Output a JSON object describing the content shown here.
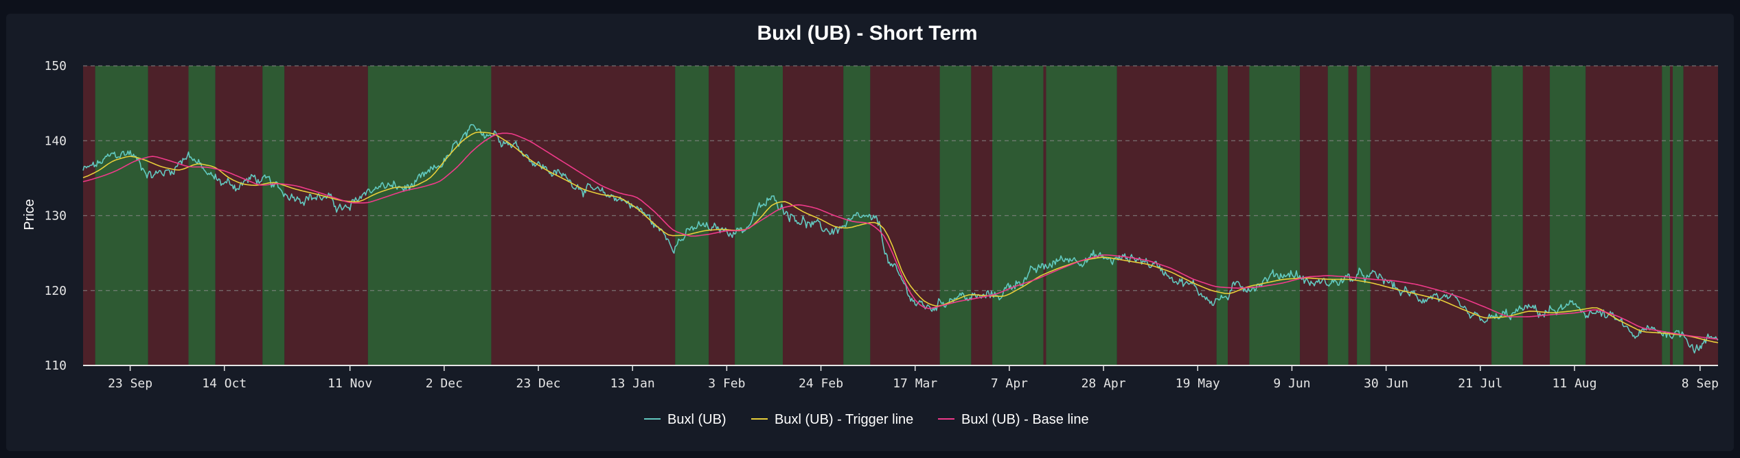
{
  "colors": {
    "background": "#0d111b",
    "panel": "#161b26",
    "bullish_band": "#2e5a33",
    "bearish_band": "#4d2129",
    "price_line": "#62c9c0",
    "trigger_line": "#e8cf3a",
    "base_line": "#f03a8a",
    "grid": "#8a8a8a",
    "axis": "#e6e6e6"
  },
  "chart_data": {
    "type": "line",
    "title": "Buxl (UB) - Short Term",
    "xlabel": "",
    "ylabel": "Price",
    "ylim": [
      110,
      150
    ],
    "yticks": [
      110,
      120,
      130,
      140,
      150
    ],
    "grid": "horizontal dashed",
    "legend_position": "bottom-center",
    "x_range_days": [
      -7.5,
      357
    ],
    "x_ticks": [
      {
        "day": 3,
        "label": "23 Sep"
      },
      {
        "day": 24,
        "label": "14 Oct"
      },
      {
        "day": 52,
        "label": "11 Nov"
      },
      {
        "day": 73,
        "label": "2 Dec"
      },
      {
        "day": 94,
        "label": "23 Dec"
      },
      {
        "day": 115,
        "label": "13 Jan"
      },
      {
        "day": 136,
        "label": "3 Feb"
      },
      {
        "day": 157,
        "label": "24 Feb"
      },
      {
        "day": 178,
        "label": "17 Mar"
      },
      {
        "day": 199,
        "label": "7 Apr"
      },
      {
        "day": 220,
        "label": "28 Apr"
      },
      {
        "day": 241,
        "label": "19 May"
      },
      {
        "day": 262,
        "label": "9 Jun"
      },
      {
        "day": 283,
        "label": "30 Jun"
      },
      {
        "day": 304,
        "label": "21 Jul"
      },
      {
        "day": 325,
        "label": "11 Aug"
      },
      {
        "day": 353,
        "label": "8 Sep"
      }
    ],
    "regime_bands": [
      {
        "start": -7.5,
        "end": -4.8,
        "state": "bearish"
      },
      {
        "start": -4.8,
        "end": 7,
        "state": "bullish"
      },
      {
        "start": 7,
        "end": 16,
        "state": "bearish"
      },
      {
        "start": 16,
        "end": 22,
        "state": "bullish"
      },
      {
        "start": 22,
        "end": 32.5,
        "state": "bearish"
      },
      {
        "start": 32.5,
        "end": 37.4,
        "state": "bullish"
      },
      {
        "start": 37.4,
        "end": 56,
        "state": "bearish"
      },
      {
        "start": 56,
        "end": 83.5,
        "state": "bullish"
      },
      {
        "start": 83.5,
        "end": 124.5,
        "state": "bearish"
      },
      {
        "start": 124.5,
        "end": 132,
        "state": "bullish"
      },
      {
        "start": 132,
        "end": 137.8,
        "state": "bearish"
      },
      {
        "start": 137.8,
        "end": 148.5,
        "state": "bullish"
      },
      {
        "start": 148.5,
        "end": 162,
        "state": "bearish"
      },
      {
        "start": 162,
        "end": 168,
        "state": "bullish"
      },
      {
        "start": 168,
        "end": 183.5,
        "state": "bearish"
      },
      {
        "start": 183.5,
        "end": 190.5,
        "state": "bullish"
      },
      {
        "start": 190.5,
        "end": 195.2,
        "state": "bearish"
      },
      {
        "start": 195.2,
        "end": 206.6,
        "state": "bullish"
      },
      {
        "start": 206.6,
        "end": 207.2,
        "state": "bearish"
      },
      {
        "start": 207.2,
        "end": 223,
        "state": "bullish"
      },
      {
        "start": 223,
        "end": 245.2,
        "state": "bearish"
      },
      {
        "start": 245.2,
        "end": 247.7,
        "state": "bullish"
      },
      {
        "start": 247.7,
        "end": 252.5,
        "state": "bearish"
      },
      {
        "start": 252.5,
        "end": 263.8,
        "state": "bullish"
      },
      {
        "start": 263.8,
        "end": 270,
        "state": "bearish"
      },
      {
        "start": 270,
        "end": 274.6,
        "state": "bullish"
      },
      {
        "start": 274.6,
        "end": 276.5,
        "state": "bearish"
      },
      {
        "start": 276.5,
        "end": 279.5,
        "state": "bullish"
      },
      {
        "start": 279.5,
        "end": 306.5,
        "state": "bearish"
      },
      {
        "start": 306.5,
        "end": 313.5,
        "state": "bullish"
      },
      {
        "start": 313.5,
        "end": 319.5,
        "state": "bearish"
      },
      {
        "start": 319.5,
        "end": 327.5,
        "state": "bullish"
      },
      {
        "start": 327.5,
        "end": 344.5,
        "state": "bearish"
      },
      {
        "start": 344.5,
        "end": 346.3,
        "state": "bullish"
      },
      {
        "start": 346.3,
        "end": 346.9,
        "state": "bearish"
      },
      {
        "start": 346.9,
        "end": 349.3,
        "state": "bullish"
      },
      {
        "start": 349.3,
        "end": 357,
        "state": "bearish"
      }
    ],
    "series": [
      {
        "name": "Buxl (UB)",
        "style": "noisy",
        "x": [
          -7.5,
          -5,
          -1,
          3,
          5,
          8,
          12,
          16,
          18,
          20,
          23,
          27,
          30,
          33,
          37,
          41,
          46,
          50,
          52,
          53,
          56,
          60,
          64,
          68,
          71,
          75,
          77,
          81,
          85,
          90,
          95,
          100,
          104,
          108,
          112,
          115,
          118,
          121,
          124,
          127,
          130,
          133,
          136,
          140,
          143,
          145,
          147,
          150,
          153,
          156,
          159,
          162,
          164,
          167,
          170,
          172,
          175,
          178,
          181,
          184,
          187,
          190,
          193,
          197,
          200,
          203,
          207,
          210,
          214,
          218,
          222,
          227,
          231,
          236,
          241,
          244,
          247,
          250,
          254,
          258,
          262,
          266,
          270,
          274,
          278,
          282,
          286,
          290,
          294,
          298,
          302,
          306,
          310,
          314,
          318,
          322,
          326,
          330,
          334,
          338,
          342,
          346,
          350,
          352,
          355,
          357
        ],
        "y": [
          136,
          136.5,
          137.8,
          138.5,
          137,
          135.5,
          136,
          138.5,
          137,
          135.5,
          134.5,
          134,
          135,
          134.5,
          133,
          132.8,
          132.5,
          131,
          130.5,
          131.5,
          133.5,
          134,
          133.5,
          134.5,
          136,
          138.5,
          140,
          141.5,
          141,
          139,
          136.5,
          135,
          134,
          132.5,
          132.5,
          131.5,
          130,
          128,
          126.5,
          127.5,
          128.5,
          128,
          128,
          128.3,
          130.5,
          131.7,
          132,
          130.5,
          129.5,
          128.3,
          128,
          128.5,
          129,
          129.5,
          128.5,
          124,
          121,
          118.5,
          117.5,
          118.5,
          119.5,
          119,
          119,
          119.5,
          121,
          122,
          123,
          124,
          124.5,
          124.5,
          124,
          124.5,
          123.5,
          122,
          120,
          118.8,
          119,
          120.5,
          121,
          122,
          122.5,
          121,
          121,
          121.5,
          121.8,
          121.5,
          120,
          119,
          119.5,
          118,
          116,
          116,
          116.5,
          117.5,
          117,
          117.5,
          117.5,
          117,
          116,
          114,
          114.5,
          114.5,
          114,
          112.5,
          113.5,
          114
        ]
      },
      {
        "name": "Buxl (UB) - Trigger line",
        "style": "smooth",
        "x": [
          -7.5,
          -4,
          -1,
          3,
          6,
          10,
          14,
          18,
          22,
          25,
          28,
          31,
          35,
          40,
          45,
          50,
          54,
          58,
          62,
          66,
          70,
          74,
          77,
          80,
          84,
          88,
          92,
          96,
          100,
          104,
          108,
          112,
          116,
          120,
          123,
          127,
          131,
          135,
          138,
          141,
          144,
          146,
          149,
          153,
          157,
          160,
          163,
          166,
          169,
          171,
          173,
          175,
          177,
          180,
          183,
          186,
          190,
          194,
          198,
          202,
          206,
          210,
          215,
          220,
          225,
          230,
          235,
          240,
          244,
          248,
          252,
          256,
          260,
          265,
          270,
          275,
          280,
          285,
          290,
          295,
          300,
          305,
          310,
          315,
          320,
          325,
          330,
          335,
          340,
          345,
          350,
          357
        ],
        "y": [
          135,
          136,
          137.3,
          138,
          137.5,
          136.5,
          136,
          137,
          136.5,
          135,
          134.2,
          134,
          134.5,
          133.5,
          132.8,
          132,
          131.8,
          133,
          133.8,
          133.8,
          135,
          138,
          140,
          141.2,
          141,
          139.5,
          137.5,
          136,
          134.8,
          133.5,
          132.8,
          132.5,
          131,
          128.8,
          127.3,
          127.4,
          128,
          128.2,
          128,
          128.2,
          130,
          131.5,
          132,
          130.5,
          129.5,
          128.5,
          128.3,
          128.8,
          129.2,
          128.5,
          126,
          122.5,
          120.5,
          118.5,
          117.8,
          118.5,
          119.5,
          119.3,
          119.2,
          120.5,
          122,
          123,
          124,
          124.5,
          124,
          123.5,
          122.5,
          121,
          120,
          119.5,
          120.5,
          121,
          121.5,
          121.7,
          121.5,
          121.5,
          121,
          120.2,
          119.5,
          118.8,
          117.5,
          116.3,
          116.5,
          117.3,
          117,
          117.3,
          117.8,
          116,
          114.5,
          114.3,
          114,
          113
        ]
      },
      {
        "name": "Buxl (UB) - Base line",
        "style": "smooth",
        "x": [
          -7.5,
          -3,
          0,
          4,
          8,
          12,
          16,
          20,
          24,
          28,
          32,
          36,
          40,
          44,
          48,
          52,
          56,
          60,
          64,
          68,
          72,
          76,
          79,
          82,
          85,
          88,
          92,
          96,
          100,
          104,
          108,
          112,
          116,
          120,
          124,
          128,
          132,
          136,
          140,
          144,
          148,
          152,
          156,
          160,
          164,
          168,
          171,
          173,
          175,
          177,
          179,
          181,
          184,
          188,
          192,
          196,
          200,
          205,
          210,
          215,
          220,
          225,
          230,
          235,
          240,
          245,
          250,
          255,
          260,
          265,
          270,
          275,
          280,
          285,
          290,
          295,
          300,
          305,
          310,
          315,
          320,
          325,
          330,
          335,
          340,
          345,
          350,
          357
        ],
        "y": [
          134.5,
          135.3,
          136,
          137.3,
          138,
          137.3,
          136.5,
          136.5,
          136,
          135,
          134,
          134.3,
          134,
          133.3,
          132.5,
          131.7,
          131.7,
          132.5,
          133.3,
          133.8,
          134.5,
          136.5,
          138.5,
          140,
          141,
          141,
          140,
          138.5,
          137,
          135.5,
          134,
          133,
          132.5,
          130.5,
          128,
          127.2,
          127.5,
          128,
          128,
          129.5,
          131,
          131.5,
          131,
          130,
          129.2,
          129,
          127.5,
          125,
          122,
          119.5,
          118,
          117.5,
          118,
          118.6,
          119,
          119.5,
          120.5,
          121.5,
          122.8,
          124,
          124.8,
          124.5,
          124,
          123,
          121.5,
          120.5,
          120.3,
          120.5,
          121,
          121.8,
          122,
          121.8,
          121.5,
          121.3,
          120.8,
          120,
          119,
          117.8,
          116.5,
          116.5,
          116.8,
          117,
          117.5,
          116.5,
          115,
          114.5,
          114,
          113.5
        ]
      }
    ]
  }
}
